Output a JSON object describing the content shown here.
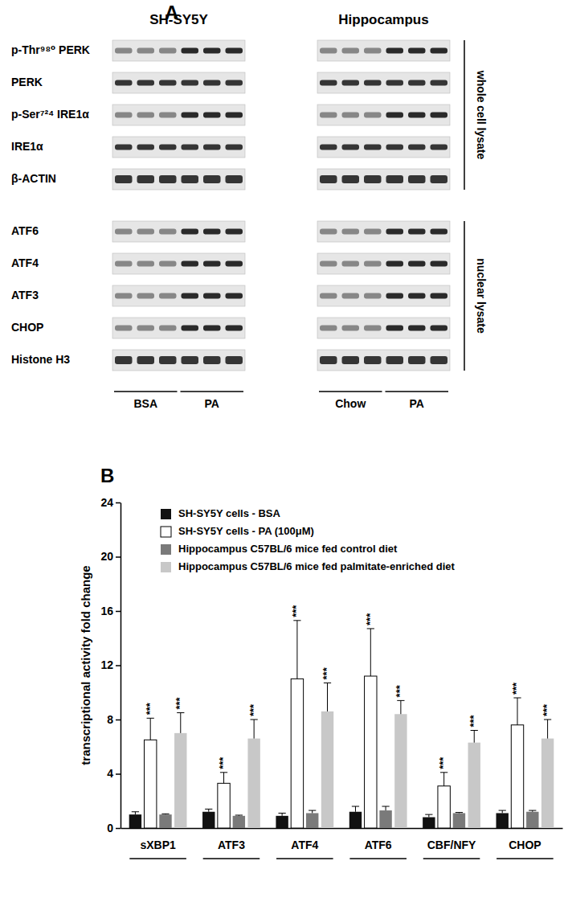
{
  "panel_a": {
    "label": "A",
    "blots": [
      {
        "title": "SH-SY5Y",
        "groups": [
          "BSA",
          "PA"
        ]
      },
      {
        "title": "Hippocampus",
        "groups": [
          "Chow",
          "PA"
        ]
      }
    ],
    "sections": [
      {
        "title": "whole cell lysate",
        "rows": [
          {
            "label": "p-Thr⁹⁸⁰ PERK",
            "induced": true
          },
          {
            "label": "PERK",
            "induced": false
          },
          {
            "label": "p-Ser⁷²⁴ IRE1α",
            "induced": true
          },
          {
            "label": "IRE1α",
            "induced": false
          },
          {
            "label": "β-ACTIN",
            "induced": false
          }
        ]
      },
      {
        "title": "nuclear lysate",
        "rows": [
          {
            "label": "ATF6",
            "induced": true
          },
          {
            "label": "ATF4",
            "induced": true
          },
          {
            "label": "ATF3",
            "induced": true
          },
          {
            "label": "CHOP",
            "induced": true
          },
          {
            "label": "Histone H3",
            "induced": false
          }
        ]
      }
    ]
  },
  "panel_b": {
    "label": "B"
  },
  "chart_data": {
    "type": "bar",
    "ylabel": "transcriptional activity fold change",
    "categories": [
      "sXBP1",
      "ATF3",
      "ATF4",
      "ATF6",
      "CBF/NFY",
      "CHOP"
    ],
    "series": [
      {
        "name": "SH-SY5Y cells - BSA",
        "color": "#111111",
        "values": [
          1.0,
          1.2,
          0.9,
          1.2,
          0.8,
          1.1
        ],
        "errors": [
          0.2,
          0.2,
          0.2,
          0.4,
          0.2,
          0.2
        ]
      },
      {
        "name": "SH-SY5Y cells - PA (100μM)",
        "color": "#ffffff",
        "values": [
          6.5,
          3.3,
          11.0,
          11.2,
          3.1,
          7.6
        ],
        "errors": [
          1.6,
          0.8,
          4.3,
          3.5,
          1.0,
          2.0
        ],
        "significance": [
          "***",
          "***",
          "***",
          "***",
          "***",
          "***"
        ]
      },
      {
        "name": "Hippocampus C57BL/6 mice fed control diet",
        "color": "#7a7a7a",
        "values": [
          1.0,
          0.9,
          1.1,
          1.3,
          1.1,
          1.2
        ],
        "errors": [
          0.05,
          0.05,
          0.2,
          0.3,
          0.05,
          0.1
        ]
      },
      {
        "name": "Hippocampus C57BL/6 mice fed palmitate-enriched diet",
        "color": "#c8c8c8",
        "values": [
          7.0,
          6.6,
          8.6,
          8.4,
          6.3,
          6.6
        ],
        "errors": [
          1.5,
          1.4,
          2.1,
          1.0,
          0.9,
          1.4
        ],
        "significance": [
          "***",
          "***",
          "***",
          "***",
          "***",
          "***"
        ]
      }
    ],
    "ylim": [
      0,
      24
    ],
    "yticks": [
      0,
      4,
      8,
      12,
      16,
      20,
      24
    ],
    "grid": false,
    "legend": "upper left"
  }
}
